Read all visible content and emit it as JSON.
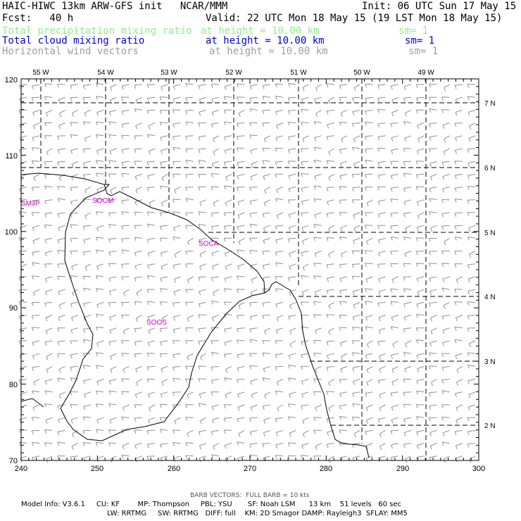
{
  "header": {
    "title_left": "HAIC-HIWC 13km ARW-GFS init   NCAR/MMM",
    "init": "Init: 06 UTC Sun 17 May 15",
    "fcst": "Fcst:   40 h",
    "valid": "Valid: 22 UTC Mon 18 May 15 (19 LST Mon 18 May 15)",
    "fields": [
      {
        "name": "Total precipitation mixing ratio",
        "height": "at height = 10.00 km",
        "sm": "sm= 1",
        "color": "#90ee90"
      },
      {
        "name": "Total cloud mixing ratio",
        "height": "at height = 10.00 km",
        "sm": "sm= 1",
        "color": "#0000cd"
      },
      {
        "name": "Horizontal wind vectors",
        "height": "at height = 10.00 km",
        "sm": "sm= 1",
        "color": "#a0a0a0"
      }
    ]
  },
  "map": {
    "x_ticks": [
      "240",
      "250",
      "260",
      "270",
      "280",
      "290",
      "300"
    ],
    "y_ticks": [
      "70",
      "80",
      "90",
      "100",
      "110",
      "120"
    ],
    "lon_labels": [
      "55 W",
      "54 W",
      "53 W",
      "52 W",
      "51 W",
      "50 W",
      "49 W"
    ],
    "lat_labels": [
      "7 N",
      "6 N",
      "5 N",
      "4 N",
      "3 N",
      "2 N"
    ],
    "stations": [
      "SMJP",
      "SOOM",
      "SOCA",
      "SOOS"
    ],
    "station_color": "#cc00cc",
    "barb_color": "#909090"
  },
  "footer": {
    "barb_note": "BARB VECTORS:  FULL BARB = 10 kts",
    "model_line1": "Model Info: V3.6.1     CU: KF        MP: Thompson     PBL: YSU       SF: Noah LSM      13 km    51 levels   60 sec",
    "model_line2": "LW: RRTMG     SW: RRTMG   DIFF: full    KM: 2D Smagor DAMP: Rayleigh3  SFLAY: MM5"
  }
}
